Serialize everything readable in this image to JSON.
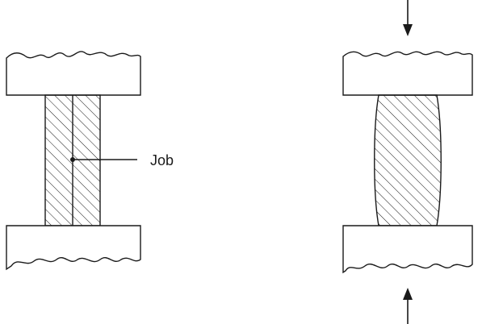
{
  "labels": {
    "job": "Job"
  },
  "colors": {
    "stroke": "#1a1a1a",
    "background": "#ffffff"
  }
}
